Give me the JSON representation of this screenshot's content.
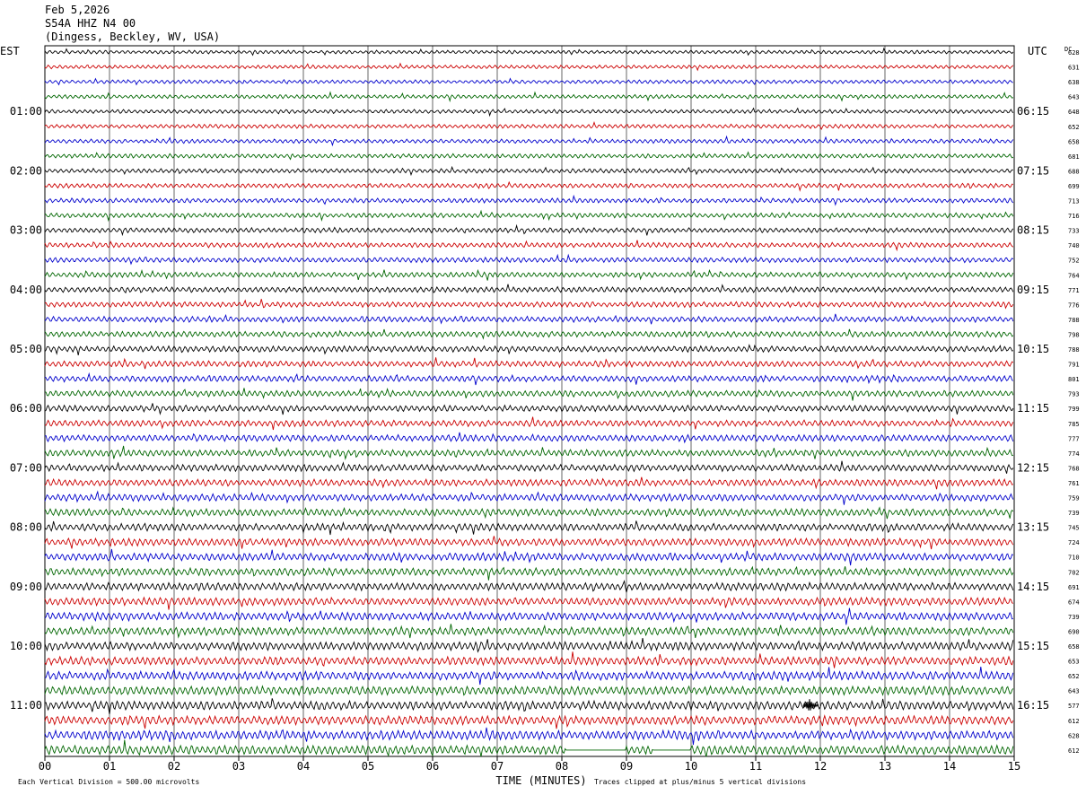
{
  "header": {
    "date": "Feb 5,2026",
    "station": "S54A HHZ N4 00",
    "location": "(Dingess, Beckley, WV, USA)"
  },
  "left_zone": "EST",
  "right_zone": "UTC",
  "dc_label": "DC",
  "footer": {
    "scale_note": "Each Vertical Division =   500.00 microvolts",
    "xlabel": "TIME (MINUTES)",
    "clip_note": "Traces clipped at plus/minus 5 vertical divisions"
  },
  "colors": {
    "trace_cycle": [
      "#000000",
      "#cc0000",
      "#0000cc",
      "#006600"
    ],
    "grid": "#000000"
  },
  "chart_data": {
    "type": "line",
    "description_free": true,
    "x_ticks": [
      "00",
      "01",
      "02",
      "03",
      "04",
      "05",
      "06",
      "07",
      "08",
      "09",
      "10",
      "11",
      "12",
      "13",
      "14",
      "15"
    ],
    "xlim": [
      0,
      15
    ],
    "rows_per_hour": 4,
    "num_rows": 48,
    "left_hour_labels": [
      "01:00",
      "02:00",
      "03:00",
      "04:00",
      "05:00",
      "06:00",
      "07:00",
      "08:00",
      "09:00",
      "10:00",
      "11:00"
    ],
    "right_hour_labels": [
      "06:15",
      "07:15",
      "08:15",
      "09:15",
      "10:15",
      "11:15",
      "12:15",
      "13:15",
      "14:15",
      "15:15",
      "16:15"
    ],
    "hour_label_first_row": 4,
    "dc_offsets": [
      628,
      631,
      638,
      643,
      648,
      652,
      658,
      681,
      688,
      699,
      713,
      716,
      733,
      740,
      752,
      764,
      771,
      776,
      788,
      798,
      788,
      791,
      801,
      793,
      799,
      785,
      777,
      774,
      768,
      761,
      759,
      739,
      745,
      724,
      710,
      702,
      691,
      674,
      739,
      690,
      658,
      653,
      652,
      643,
      577,
      612,
      628,
      612
    ]
  }
}
